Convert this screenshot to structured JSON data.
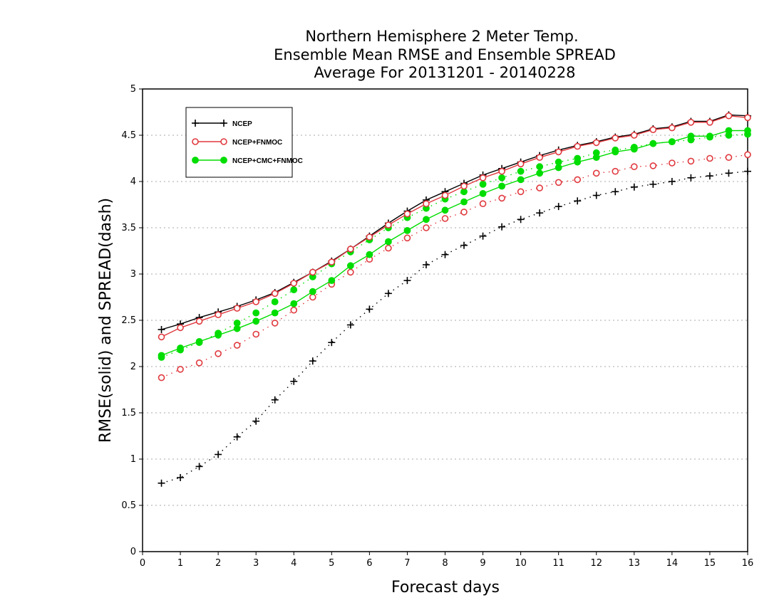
{
  "chart_data": {
    "type": "line",
    "title": [
      "Northern Hemisphere 2 Meter Temp.",
      "Ensemble Mean RMSE and Ensemble SPREAD",
      "Average For 20131201 - 20140228"
    ],
    "xlabel": "Forecast days",
    "ylabel": "RMSE(solid) and SPREAD(dash)",
    "xlim": [
      0,
      16
    ],
    "ylim": [
      0,
      5
    ],
    "xticks": [
      "0",
      "1",
      "2",
      "3",
      "4",
      "5",
      "6",
      "7",
      "8",
      "9",
      "10",
      "11",
      "12",
      "13",
      "14",
      "15",
      "16"
    ],
    "yticks": [
      "0",
      "0.5",
      "1",
      "1.5",
      "2",
      "2.5",
      "3",
      "3.5",
      "4",
      "4.5",
      "5"
    ],
    "grid": "horizontal-dotted",
    "legend_position": "top-left",
    "x": [
      0.5,
      1,
      1.5,
      2,
      2.5,
      3,
      3.5,
      4,
      4.5,
      5,
      5.5,
      6,
      6.5,
      7,
      7.5,
      8,
      8.5,
      9,
      9.5,
      10,
      10.5,
      11,
      11.5,
      12,
      12.5,
      13,
      13.5,
      14,
      14.5,
      15,
      15.5,
      16
    ],
    "series": [
      {
        "name": "NCEP",
        "marker": "plus",
        "color": "#000000",
        "style": "solid",
        "values": [
          2.4,
          2.46,
          2.53,
          2.59,
          2.65,
          2.72,
          2.8,
          2.91,
          3.02,
          3.14,
          3.27,
          3.41,
          3.55,
          3.68,
          3.8,
          3.89,
          3.98,
          4.07,
          4.14,
          4.21,
          4.28,
          4.34,
          4.39,
          4.43,
          4.48,
          4.51,
          4.57,
          4.59,
          4.65,
          4.65,
          4.72,
          4.71
        ]
      },
      {
        "name": "NCEP+FNMOC",
        "marker": "open-circle",
        "color": "#e0393e",
        "style": "solid",
        "values": [
          2.32,
          2.42,
          2.49,
          2.56,
          2.63,
          2.7,
          2.79,
          2.9,
          3.02,
          3.13,
          3.27,
          3.4,
          3.53,
          3.65,
          3.76,
          3.85,
          3.95,
          4.04,
          4.11,
          4.19,
          4.26,
          4.32,
          4.38,
          4.42,
          4.47,
          4.5,
          4.56,
          4.58,
          4.64,
          4.64,
          4.71,
          4.69
        ]
      },
      {
        "name": "NCEP+CMC+FNMOC",
        "marker": "filled-circle",
        "color": "#00dd00",
        "style": "solid",
        "values": [
          2.12,
          2.2,
          2.27,
          2.34,
          2.41,
          2.49,
          2.58,
          2.68,
          2.81,
          2.93,
          3.09,
          3.21,
          3.35,
          3.47,
          3.59,
          3.69,
          3.78,
          3.87,
          3.95,
          4.02,
          4.09,
          4.15,
          4.21,
          4.26,
          4.32,
          4.35,
          4.41,
          4.43,
          4.49,
          4.49,
          4.55,
          4.55
        ]
      },
      {
        "name": "NCEP spread",
        "marker": "plus",
        "color": "#000000",
        "style": "dotted",
        "values": [
          0.74,
          0.8,
          0.92,
          1.05,
          1.24,
          1.41,
          1.64,
          1.84,
          2.06,
          2.26,
          2.45,
          2.62,
          2.79,
          2.93,
          3.1,
          3.21,
          3.31,
          3.41,
          3.51,
          3.59,
          3.66,
          3.73,
          3.79,
          3.85,
          3.89,
          3.94,
          3.97,
          4.0,
          4.04,
          4.06,
          4.09,
          4.11
        ]
      },
      {
        "name": "NCEP+FNMOC spread",
        "marker": "open-circle",
        "color": "#e0393e",
        "style": "dotted",
        "values": [
          1.88,
          1.97,
          2.04,
          2.14,
          2.23,
          2.35,
          2.47,
          2.61,
          2.75,
          2.89,
          3.02,
          3.16,
          3.28,
          3.39,
          3.5,
          3.6,
          3.67,
          3.76,
          3.82,
          3.89,
          3.93,
          3.99,
          4.02,
          4.09,
          4.11,
          4.16,
          4.17,
          4.2,
          4.22,
          4.25,
          4.26,
          4.29
        ]
      },
      {
        "name": "NCEP+CMC+FNMOC spread",
        "marker": "filled-circle",
        "color": "#00dd00",
        "style": "dotted",
        "values": [
          2.1,
          2.18,
          2.26,
          2.36,
          2.47,
          2.58,
          2.7,
          2.83,
          2.97,
          3.11,
          3.24,
          3.37,
          3.5,
          3.61,
          3.71,
          3.81,
          3.89,
          3.97,
          4.04,
          4.11,
          4.16,
          4.21,
          4.25,
          4.31,
          4.34,
          4.37,
          4.41,
          4.43,
          4.45,
          4.48,
          4.5,
          4.51
        ]
      }
    ],
    "legend": [
      "NCEP",
      "NCEP+FNMOC",
      "NCEP+CMC+FNMOC"
    ]
  }
}
